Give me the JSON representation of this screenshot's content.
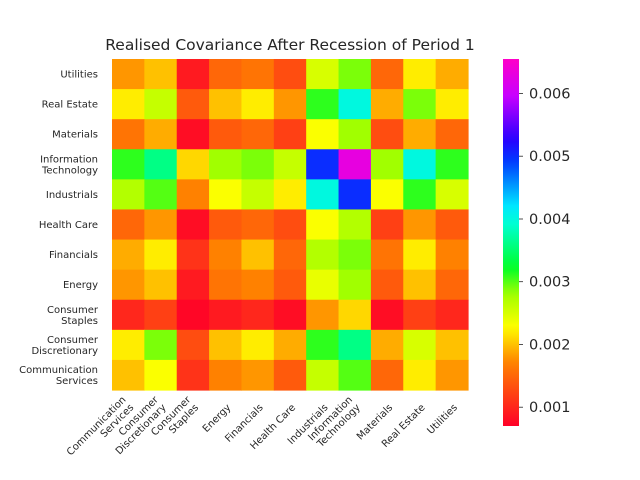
{
  "chart_data": {
    "type": "heatmap",
    "title": "Realised Covariance After Recession of Period 1",
    "xlabel": "",
    "ylabel": "",
    "x_categories": [
      "Communication Services",
      "Consumer Discretionary",
      "Consumer Staples",
      "Energy",
      "Financials",
      "Health Care",
      "Industrials",
      "Information Technology",
      "Materials",
      "Real Estate",
      "Utilities"
    ],
    "y_categories": [
      "Utilities",
      "Real Estate",
      "Materials",
      "Information Technology",
      "Industrials",
      "Health Care",
      "Financials",
      "Energy",
      "Consumer Staples",
      "Consumer Discretionary",
      "Communication Services"
    ],
    "values": [
      [
        0.0018,
        0.002,
        0.0009,
        0.0015,
        0.0016,
        0.0013,
        0.0025,
        0.0029,
        0.0015,
        0.0022,
        0.0019
      ],
      [
        0.0022,
        0.0026,
        0.0014,
        0.002,
        0.0022,
        0.0018,
        0.0031,
        0.004,
        0.0019,
        0.0029,
        0.0022
      ],
      [
        0.0016,
        0.0019,
        0.0008,
        0.0014,
        0.0015,
        0.0012,
        0.0023,
        0.0028,
        0.0013,
        0.0019,
        0.0015
      ],
      [
        0.0031,
        0.0036,
        0.0021,
        0.0028,
        0.0029,
        0.0026,
        0.005,
        0.0063,
        0.0028,
        0.004,
        0.0031
      ],
      [
        0.0027,
        0.003,
        0.0017,
        0.0023,
        0.0026,
        0.0022,
        0.004,
        0.005,
        0.0023,
        0.0031,
        0.0025
      ],
      [
        0.0015,
        0.0018,
        0.0008,
        0.0014,
        0.0015,
        0.0013,
        0.0023,
        0.0027,
        0.0012,
        0.0018,
        0.0014
      ],
      [
        0.0019,
        0.0022,
        0.0011,
        0.0017,
        0.002,
        0.0015,
        0.0027,
        0.0029,
        0.0016,
        0.0022,
        0.0017
      ],
      [
        0.0018,
        0.002,
        0.0009,
        0.0016,
        0.0017,
        0.0014,
        0.0024,
        0.0028,
        0.0014,
        0.002,
        0.0015
      ],
      [
        0.001,
        0.0012,
        0.00075,
        0.0009,
        0.001,
        0.0008,
        0.0018,
        0.0021,
        0.0008,
        0.0012,
        0.001
      ],
      [
        0.0022,
        0.0029,
        0.0013,
        0.002,
        0.0022,
        0.0019,
        0.0031,
        0.0036,
        0.0019,
        0.0025,
        0.002
      ],
      [
        0.002,
        0.0023,
        0.0011,
        0.0017,
        0.0018,
        0.0014,
        0.0026,
        0.003,
        0.0015,
        0.0022,
        0.0018
      ]
    ],
    "colormap": "gist_rainbow",
    "range": [
      0.0007,
      0.00655
    ],
    "colorbar": {
      "ticks": [
        0.001,
        0.002,
        0.003,
        0.004,
        0.005,
        0.006
      ],
      "tick_labels": [
        "0.001",
        "0.002",
        "0.003",
        "0.004",
        "0.005",
        "0.006"
      ],
      "position": "right"
    },
    "grid": false
  }
}
